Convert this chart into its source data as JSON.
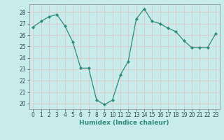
{
  "x": [
    0,
    1,
    2,
    3,
    4,
    5,
    6,
    7,
    8,
    9,
    10,
    11,
    12,
    13,
    14,
    15,
    16,
    17,
    18,
    19,
    20,
    21,
    22,
    23
  ],
  "y": [
    26.7,
    27.2,
    27.6,
    27.8,
    26.8,
    25.4,
    23.1,
    23.1,
    20.3,
    19.9,
    20.3,
    22.5,
    23.7,
    27.4,
    28.3,
    27.2,
    27.0,
    26.6,
    26.3,
    25.5,
    24.9,
    24.9,
    24.9,
    26.1
  ],
  "line_color": "#2e8b7a",
  "marker": "D",
  "markersize": 2.0,
  "linewidth": 0.9,
  "xlabel": "Humidex (Indice chaleur)",
  "ylim": [
    19.5,
    28.7
  ],
  "yticks": [
    20,
    21,
    22,
    23,
    24,
    25,
    26,
    27,
    28
  ],
  "xticks": [
    0,
    1,
    2,
    3,
    4,
    5,
    6,
    7,
    8,
    9,
    10,
    11,
    12,
    13,
    14,
    15,
    16,
    17,
    18,
    19,
    20,
    21,
    22,
    23
  ],
  "bg_color": "#c8ecec",
  "grid_color": "#e0c8c8",
  "tick_fontsize": 5.5,
  "xlabel_fontsize": 6.5
}
